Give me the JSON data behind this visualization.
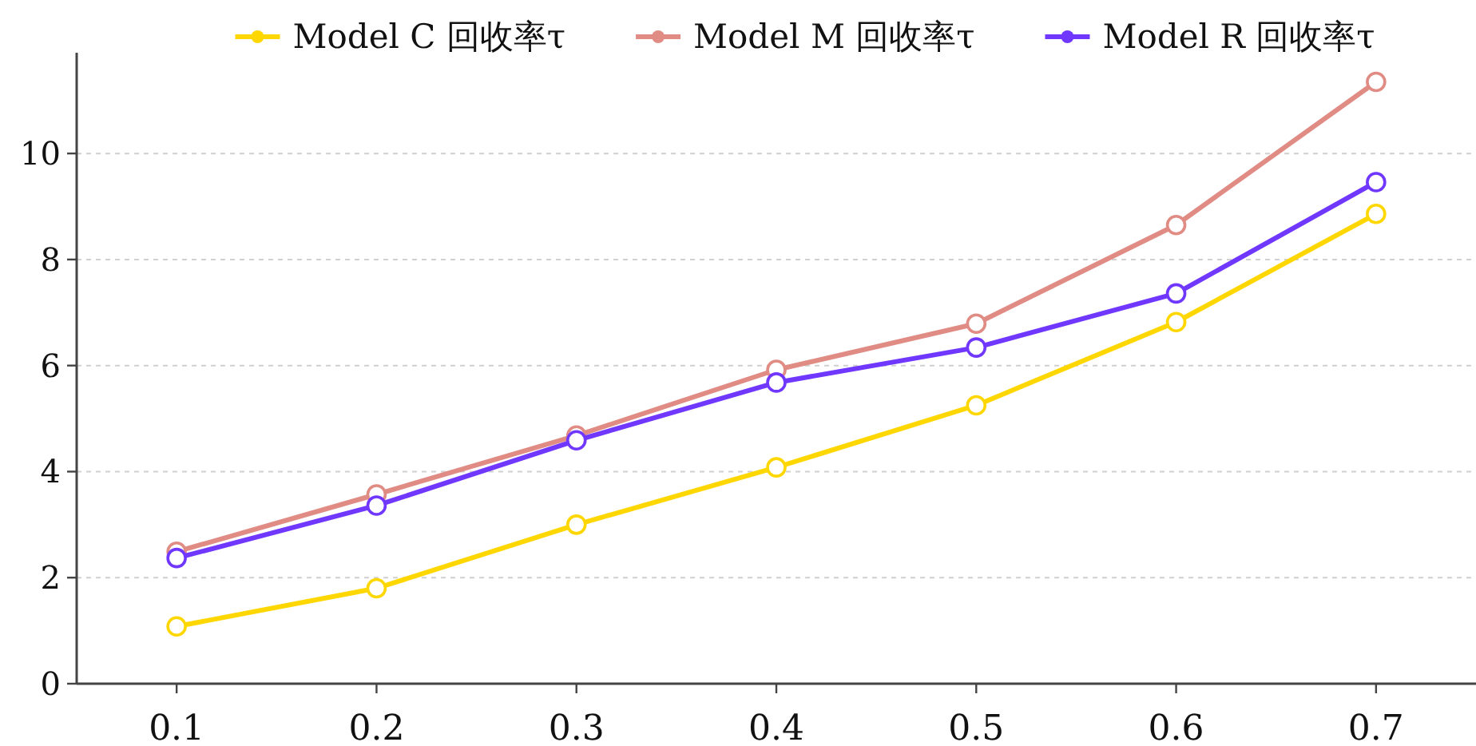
{
  "chart_data": {
    "type": "line",
    "x": [
      0.1,
      0.2,
      0.3,
      0.4,
      0.5,
      0.6,
      0.7
    ],
    "series": [
      {
        "name": "Model C 回收率τ",
        "color": "#ffd700",
        "values": [
          1.08,
          1.8,
          3.0,
          4.08,
          5.25,
          6.82,
          8.86
        ]
      },
      {
        "name": "Model M 回收率τ",
        "color": "#e08c84",
        "values": [
          2.49,
          3.57,
          4.68,
          5.92,
          6.79,
          8.65,
          11.35
        ]
      },
      {
        "name": "Model R 回收率τ",
        "color": "#7038ff",
        "values": [
          2.37,
          3.36,
          4.59,
          5.68,
          6.34,
          7.36,
          9.46
        ]
      }
    ],
    "xlim": [
      0.05,
      0.75
    ],
    "ylim": [
      0,
      11.9
    ],
    "xticks": [
      0.1,
      0.2,
      0.3,
      0.4,
      0.5,
      0.6,
      0.7
    ],
    "yticks": [
      0,
      2,
      4,
      6,
      8,
      10
    ],
    "grid": "y",
    "legend": "top",
    "marker": "circle",
    "line_style": "solid"
  }
}
